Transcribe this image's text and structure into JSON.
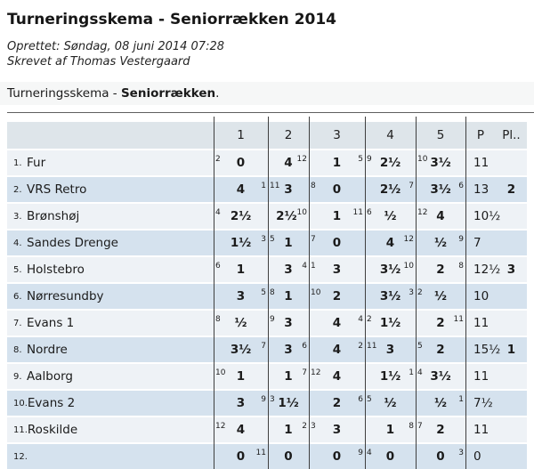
{
  "page": {
    "title": "Turneringsskema - Seniorrækken 2014",
    "created": "Oprettet: Søndag, 08 juni 2014 07:28",
    "author": "Skrevet af Thomas Vestergaard",
    "subtitle_prefix": "Turneringsskema - ",
    "subtitle_bold": "Seniorrækken",
    "subtitle_suffix": "."
  },
  "colors": {
    "row_light": "#eef2f6",
    "row_blue": "#d5e2ee",
    "header_row": "#dee5ea",
    "subtitle_band": "#f6f7f7",
    "column_line": "#3f3f3f"
  },
  "table": {
    "round_headers": [
      "1",
      "2",
      "3",
      "4",
      "5"
    ],
    "points_header": "P",
    "place_header": "Pl..",
    "rows": [
      {
        "num": "1.",
        "name": "Fur",
        "rounds": [
          {
            "pre": "2",
            "score": "0",
            "post": ""
          },
          {
            "pre": "",
            "score": "4",
            "post": "12"
          },
          {
            "pre": "",
            "score": "1",
            "post": "5"
          },
          {
            "pre": "9",
            "score": "2½",
            "post": ""
          },
          {
            "pre": "10",
            "score": "3½",
            "post": ""
          }
        ],
        "points": "11",
        "place": ""
      },
      {
        "num": "2.",
        "name": "VRS Retro",
        "rounds": [
          {
            "pre": "",
            "score": "4",
            "post": "1"
          },
          {
            "pre": "11",
            "score": "3",
            "post": ""
          },
          {
            "pre": "8",
            "score": "0",
            "post": ""
          },
          {
            "pre": "",
            "score": "2½",
            "post": "7"
          },
          {
            "pre": "",
            "score": "3½",
            "post": "6"
          }
        ],
        "points": "13",
        "place": "2"
      },
      {
        "num": "3.",
        "name": "Brønshøj",
        "rounds": [
          {
            "pre": "4",
            "score": "2½",
            "post": ""
          },
          {
            "pre": "",
            "score": "2½",
            "post": "10"
          },
          {
            "pre": "",
            "score": "1",
            "post": "11"
          },
          {
            "pre": "6",
            "score": "½",
            "post": ""
          },
          {
            "pre": "12",
            "score": "4",
            "post": ""
          }
        ],
        "points": "10½",
        "place": ""
      },
      {
        "num": "4.",
        "name": "Sandes Drenge",
        "rounds": [
          {
            "pre": "",
            "score": "1½",
            "post": "3"
          },
          {
            "pre": "5",
            "score": "1",
            "post": ""
          },
          {
            "pre": "7",
            "score": "0",
            "post": ""
          },
          {
            "pre": "",
            "score": "4",
            "post": "12"
          },
          {
            "pre": "",
            "score": "½",
            "post": "9"
          }
        ],
        "points": "7",
        "place": ""
      },
      {
        "num": "5.",
        "name": "Holstebro",
        "rounds": [
          {
            "pre": "6",
            "score": "1",
            "post": ""
          },
          {
            "pre": "",
            "score": "3",
            "post": "4"
          },
          {
            "pre": "1",
            "score": "3",
            "post": ""
          },
          {
            "pre": "",
            "score": "3½",
            "post": "10"
          },
          {
            "pre": "",
            "score": "2",
            "post": "8"
          }
        ],
        "points": "12½",
        "place": "3"
      },
      {
        "num": "6.",
        "name": "Nørresundby",
        "rounds": [
          {
            "pre": "",
            "score": "3",
            "post": "5"
          },
          {
            "pre": "8",
            "score": "1",
            "post": ""
          },
          {
            "pre": "10",
            "score": "2",
            "post": ""
          },
          {
            "pre": "",
            "score": "3½",
            "post": "3"
          },
          {
            "pre": "2",
            "score": "½",
            "post": ""
          }
        ],
        "points": "10",
        "place": ""
      },
      {
        "num": "7.",
        "name": "Evans 1",
        "rounds": [
          {
            "pre": "8",
            "score": "½",
            "post": ""
          },
          {
            "pre": "9",
            "score": "3",
            "post": ""
          },
          {
            "pre": "",
            "score": "4",
            "post": "4"
          },
          {
            "pre": "2",
            "score": "1½",
            "post": ""
          },
          {
            "pre": "",
            "score": "2",
            "post": "11"
          }
        ],
        "points": "11",
        "place": ""
      },
      {
        "num": "8.",
        "name": "Nordre",
        "rounds": [
          {
            "pre": "",
            "score": "3½",
            "post": "7"
          },
          {
            "pre": "",
            "score": "3",
            "post": "6"
          },
          {
            "pre": "",
            "score": "4",
            "post": "2"
          },
          {
            "pre": "11",
            "score": "3",
            "post": ""
          },
          {
            "pre": "5",
            "score": "2",
            "post": ""
          }
        ],
        "points": "15½",
        "place": "1"
      },
      {
        "num": "9.",
        "name": "Aalborg",
        "rounds": [
          {
            "pre": "10",
            "score": "1",
            "post": ""
          },
          {
            "pre": "",
            "score": "1",
            "post": "7"
          },
          {
            "pre": "12",
            "score": "4",
            "post": ""
          },
          {
            "pre": "",
            "score": "1½",
            "post": "1"
          },
          {
            "pre": "4",
            "score": "3½",
            "post": ""
          }
        ],
        "points": "11",
        "place": ""
      },
      {
        "num": "10.",
        "name": "Evans 2",
        "rounds": [
          {
            "pre": "",
            "score": "3",
            "post": "9"
          },
          {
            "pre": "3",
            "score": "1½",
            "post": ""
          },
          {
            "pre": "",
            "score": "2",
            "post": "6"
          },
          {
            "pre": "5",
            "score": "½",
            "post": ""
          },
          {
            "pre": "",
            "score": "½",
            "post": "1"
          }
        ],
        "points": "7½",
        "place": ""
      },
      {
        "num": "11.",
        "name": "Roskilde",
        "rounds": [
          {
            "pre": "12",
            "score": "4",
            "post": ""
          },
          {
            "pre": "",
            "score": "1",
            "post": "2"
          },
          {
            "pre": "3",
            "score": "3",
            "post": ""
          },
          {
            "pre": "",
            "score": "1",
            "post": "8"
          },
          {
            "pre": "7",
            "score": "2",
            "post": ""
          }
        ],
        "points": "11",
        "place": ""
      },
      {
        "num": "12.",
        "name": "",
        "rounds": [
          {
            "pre": "",
            "score": "0",
            "post": "11"
          },
          {
            "pre": "",
            "score": "0",
            "post": ""
          },
          {
            "pre": "",
            "score": "0",
            "post": "9"
          },
          {
            "pre": "4",
            "score": "0",
            "post": ""
          },
          {
            "pre": "",
            "score": "0",
            "post": "3"
          }
        ],
        "points": "0",
        "place": ""
      }
    ]
  },
  "layout": {
    "column_line_offsets": [
      232,
      293,
      339,
      402,
      459,
      515
    ]
  }
}
